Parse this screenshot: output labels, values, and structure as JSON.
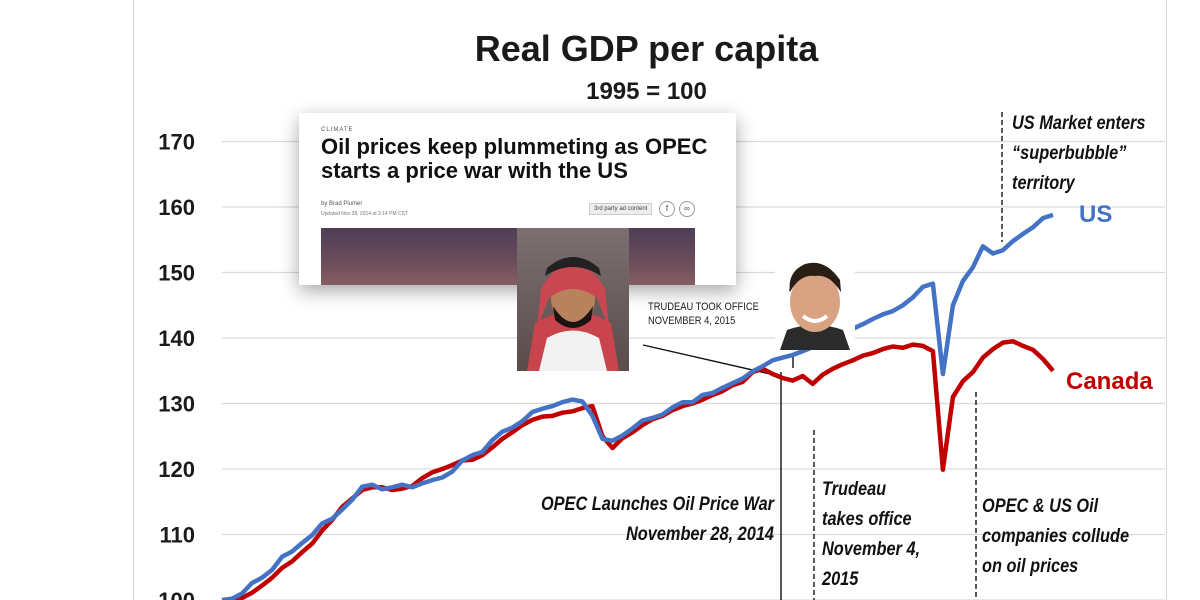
{
  "chart_data": {
    "type": "line",
    "title": "Real GDP per capita",
    "subtitle": "1995 = 100",
    "xlabel": "",
    "ylabel": "",
    "ylim": [
      100,
      175
    ],
    "yticks": [
      100,
      110,
      120,
      130,
      140,
      150,
      160,
      170
    ],
    "ytick_labels": [
      "100",
      "110",
      "120",
      "130",
      "140",
      "150",
      "160",
      "170"
    ],
    "grid": true,
    "x_period": "quarterly, 1995 onward",
    "series": [
      {
        "name": "US",
        "color": "#4472c4",
        "values": [
          100,
          100.2,
          101,
          102.6,
          103.4,
          104.6,
          106.6,
          107.4,
          108.7,
          109.9,
          111.7,
          112.4,
          113.8,
          115.3,
          117.3,
          117.6,
          116.9,
          117.2,
          117.6,
          117.2,
          117.8,
          118.3,
          118.7,
          119.6,
          121.3,
          122.1,
          122.6,
          124.4,
          125.7,
          126.3,
          127.3,
          128.7,
          129.2,
          129.6,
          130.2,
          130.6,
          130.3,
          128.1,
          124.6,
          124.3,
          125.1,
          126.2,
          127.4,
          127.8,
          128.3,
          129.4,
          130.2,
          130.2,
          131.3,
          131.6,
          132.4,
          133.1,
          133.8,
          134.9,
          135.7,
          136.6,
          137.0,
          137.4,
          138.0,
          138.6,
          139.3,
          140.5,
          141.0,
          141.4,
          142.1,
          142.9,
          143.6,
          144.1,
          145.0,
          146.2,
          147.8,
          148.3,
          134.5,
          145.0,
          148.7,
          150.8,
          154.0,
          152.9,
          153.4,
          154.8,
          155.9,
          156.9,
          158.3,
          158.8
        ]
      },
      {
        "name": "Canada",
        "color": "#c00000",
        "values": [
          99.8,
          99.8,
          100.3,
          101.1,
          102.2,
          103.4,
          104.9,
          105.9,
          107.3,
          108.6,
          110.6,
          112.2,
          114.2,
          115.5,
          116.8,
          117.2,
          117.2,
          116.8,
          117.0,
          117.4,
          118.6,
          119.5,
          120.0,
          120.6,
          121.3,
          121.4,
          122.1,
          123.3,
          124.6,
          125.6,
          126.7,
          127.5,
          128.0,
          128.1,
          128.6,
          128.8,
          129.3,
          129.6,
          125.0,
          123.2,
          124.7,
          125.6,
          126.7,
          127.6,
          128.1,
          129.0,
          129.6,
          130.0,
          130.6,
          131.3,
          131.9,
          132.8,
          133.3,
          134.8,
          135.3,
          134.5,
          133.9,
          133.5,
          134.2,
          133.0,
          134.4,
          135.3,
          136.0,
          136.6,
          137.3,
          137.7,
          138.3,
          138.7,
          138.5,
          139.0,
          138.8,
          138.0,
          119.9,
          131.0,
          133.4,
          134.8,
          137.0,
          138.3,
          139.3,
          139.5,
          138.8,
          138.2,
          136.8,
          135.0
        ]
      }
    ],
    "series_labels": [
      "US",
      "Canada"
    ],
    "annotations": [
      {
        "lines": [
          "US Market enters",
          "“superbubble”",
          "territory"
        ]
      },
      {
        "lines": [
          "OPEC Launches Oil Price War",
          "November 28, 2014"
        ]
      },
      {
        "lines": [
          "Trudeau",
          "takes office",
          "November 4,",
          "2015"
        ]
      },
      {
        "lines": [
          "OPEC & US Oil",
          "companies collude",
          "on oil prices"
        ]
      },
      {
        "lines": [
          "TRUDEAU TOOK OFFICE",
          "NOVEMBER 4, 2015"
        ]
      }
    ]
  },
  "news_card": {
    "kicker": "CLIMATE",
    "headline": "Oil prices keep plummeting as OPEC starts a price war with the US",
    "byline": "by Brad Plumer",
    "updated": "Updated Nov 28, 2014 at 3:14 PM CST",
    "ad_badge": "3rd party ad content",
    "share_icons": [
      "facebook-icon",
      "link-icon"
    ]
  },
  "photos": [
    "mbs-portrait",
    "trudeau-portrait"
  ],
  "colors": {
    "us": "#4472c4",
    "canada": "#c00000",
    "grid": "#d9d9d9",
    "text": "#1a1a1a"
  }
}
